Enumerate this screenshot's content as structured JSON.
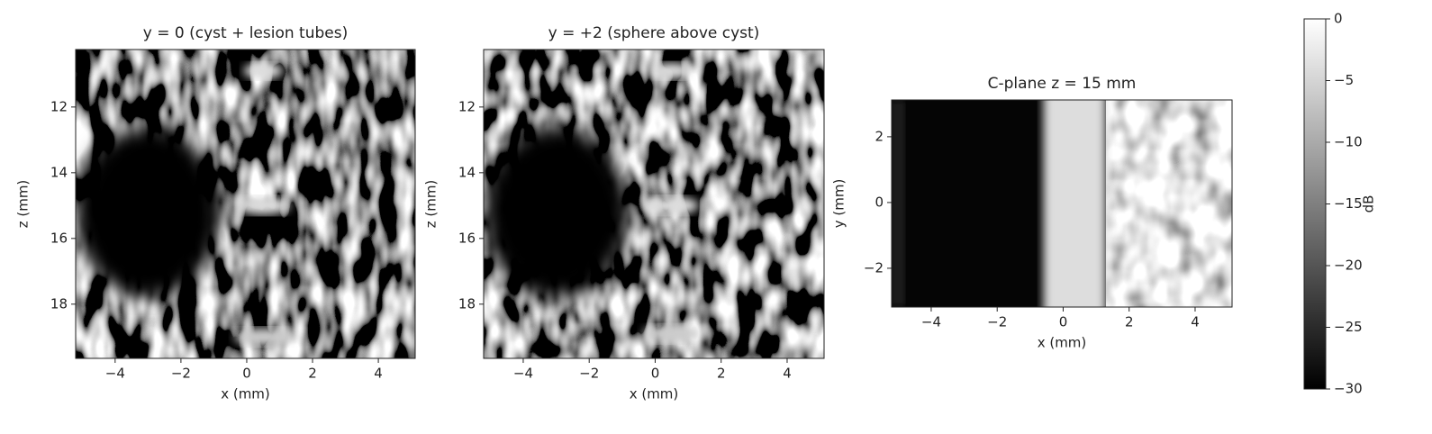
{
  "chart_data": [
    {
      "type": "image",
      "title": "y = 0 (cyst + lesion tubes)",
      "x_label": "x (mm)",
      "y_label": "z (mm)",
      "xlim": [
        -5.2,
        5.12
      ],
      "ylim": [
        19.65,
        10.25
      ],
      "xticks": [
        {
          "value": -4,
          "label": "−4"
        },
        {
          "value": -2,
          "label": "−2"
        },
        0,
        2,
        4
      ],
      "yticks": [
        12,
        14,
        16,
        18
      ]
    },
    {
      "type": "image",
      "title": "y = +2 (sphere above cyst)",
      "x_label": "x (mm)",
      "y_label": "z (mm)",
      "xlim": [
        -5.2,
        5.12
      ],
      "ylim": [
        19.65,
        10.25
      ],
      "xticks": [
        {
          "value": -4,
          "label": "−4"
        },
        {
          "value": -2,
          "label": "−2"
        },
        0,
        2,
        4
      ],
      "yticks": [
        12,
        14,
        16,
        18
      ]
    },
    {
      "type": "cplane",
      "title": "C-plane z = 15 mm",
      "x_label": "x (mm)",
      "y_label": "y (mm)",
      "xlim": [
        -5.2,
        5.12
      ],
      "ylim": [
        -3.18,
        3.12
      ],
      "xticks": [
        {
          "value": -4,
          "label": "−4"
        },
        {
          "value": -2,
          "label": "−2"
        },
        0,
        2,
        4
      ],
      "yticks": [
        {
          "value": -2,
          "label": "−2"
        },
        0,
        2
      ]
    },
    {
      "type": "colorbar",
      "label": "dB",
      "ylim": [
        -30,
        0
      ],
      "yticks": [
        {
          "value": -30,
          "label": "−30"
        },
        {
          "value": -25,
          "label": "−25"
        },
        {
          "value": -20,
          "label": "−20"
        },
        {
          "value": -15,
          "label": "−15"
        },
        {
          "value": -10,
          "label": "−10"
        },
        {
          "value": -5,
          "label": "−5"
        },
        0
      ]
    }
  ]
}
